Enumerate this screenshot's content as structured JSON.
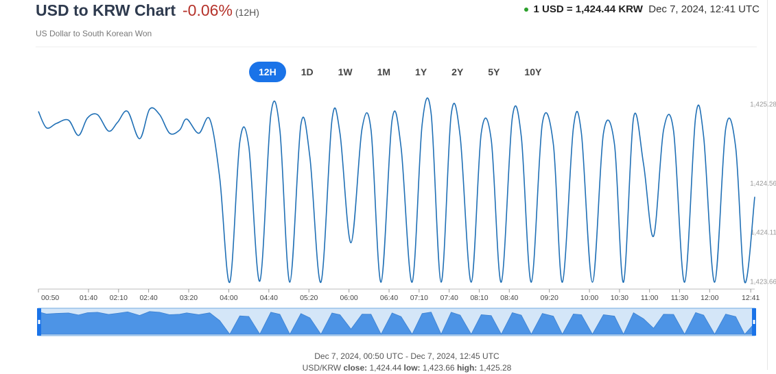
{
  "header": {
    "title": "USD to KRW Chart",
    "change": "-0.06%",
    "period": "(12H)",
    "subtitle": "US Dollar to South Korean Won",
    "rate": "1 USD = 1,424.44 KRW",
    "date": "Dec 7, 2024, 12:41 UTC"
  },
  "ranges": [
    "12H",
    "1D",
    "1W",
    "1M",
    "1Y",
    "2Y",
    "5Y",
    "10Y"
  ],
  "chart_data": {
    "type": "line",
    "color": "#1f6fb5",
    "x": [
      "00:50",
      "00:58",
      "01:08",
      "01:20",
      "01:30",
      "01:39",
      "01:49",
      "02:00",
      "02:09",
      "02:19",
      "02:31",
      "02:41",
      "02:51",
      "03:01",
      "03:11",
      "03:18",
      "03:30",
      "03:41",
      "03:51",
      "04:01",
      "04:11",
      "04:20",
      "04:31",
      "04:42",
      "04:51",
      "05:01",
      "05:12",
      "05:21",
      "05:32",
      "05:43",
      "05:51",
      "06:02",
      "06:13",
      "06:22",
      "06:32",
      "06:43",
      "06:52",
      "07:03",
      "07:13",
      "07:22",
      "07:32",
      "07:42",
      "07:51",
      "08:02",
      "08:12",
      "08:22",
      "08:32",
      "08:43",
      "08:52",
      "09:02",
      "09:13",
      "09:24",
      "09:33",
      "09:44",
      "09:52",
      "10:03",
      "10:14",
      "10:25",
      "10:34",
      "10:44",
      "10:54",
      "11:04",
      "11:14",
      "11:24",
      "11:35",
      "11:46",
      "11:54",
      "12:05",
      "12:16",
      "12:26",
      "12:35",
      "12:45"
    ],
    "values": [
      1425.22,
      1425.07,
      1425.11,
      1425.14,
      1425.0,
      1425.16,
      1425.19,
      1425.04,
      1425.12,
      1425.22,
      1424.97,
      1425.24,
      1425.19,
      1425.02,
      1425.05,
      1425.15,
      1425.02,
      1425.15,
      1424.61,
      1423.66,
      1424.94,
      1424.9,
      1423.67,
      1425.19,
      1425.05,
      1423.66,
      1425.1,
      1424.8,
      1423.66,
      1425.14,
      1425.02,
      1424.02,
      1425.06,
      1425.05,
      1423.66,
      1425.14,
      1424.89,
      1423.66,
      1425.1,
      1425.2,
      1423.66,
      1425.19,
      1424.99,
      1423.66,
      1425.02,
      1424.96,
      1423.66,
      1425.16,
      1424.99,
      1423.66,
      1425.11,
      1424.92,
      1423.66,
      1425.07,
      1425.02,
      1423.66,
      1425.02,
      1424.92,
      1423.66,
      1425.16,
      1424.74,
      1424.08,
      1425.05,
      1425.04,
      1423.66,
      1425.17,
      1424.99,
      1423.66,
      1425.06,
      1424.89,
      1423.66,
      1424.44
    ],
    "xlim": [
      "00:50",
      "12:45"
    ],
    "xticks": [
      "00:50",
      "01:40",
      "02:10",
      "02:40",
      "03:20",
      "04:00",
      "04:40",
      "05:20",
      "06:00",
      "06:40",
      "07:10",
      "07:40",
      "08:10",
      "08:40",
      "09:20",
      "10:00",
      "10:30",
      "11:00",
      "11:30",
      "12:00",
      "12:41"
    ],
    "ylim": [
      1423.66,
      1425.28
    ],
    "yticks": [
      {
        "value": 1425.28,
        "label": "1,425.28"
      },
      {
        "value": 1424.56,
        "label": "1,424.56"
      },
      {
        "value": 1424.11,
        "label": "1,424.11"
      },
      {
        "value": 1423.66,
        "label": "1,423.66"
      }
    ]
  },
  "footer": {
    "range": "Dec 7, 2024, 00:50 UTC - Dec 7, 2024, 12:45 UTC",
    "pair": "USD/KRW",
    "close_label": "close:",
    "close": "1,424.44",
    "low_label": "low:",
    "low": "1,423.66",
    "high_label": "high:",
    "high": "1,425.28"
  }
}
